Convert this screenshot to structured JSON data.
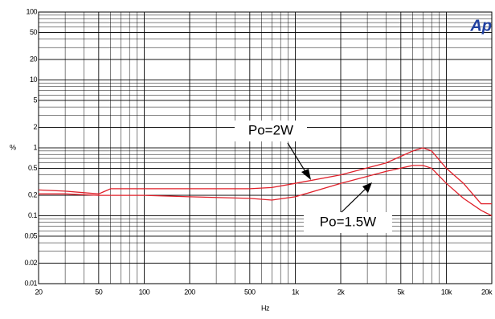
{
  "chart_data": {
    "type": "line",
    "xlabel": "Hz",
    "ylabel": "%",
    "logo": "Ap",
    "x": [
      20,
      30,
      50,
      60,
      100,
      200,
      500,
      700,
      1000,
      2000,
      4000,
      6000,
      7000,
      8000,
      10000,
      13000,
      17000,
      20000
    ],
    "series": [
      {
        "name": "Po=2W",
        "color": "#e0202a",
        "values": [
          0.24,
          0.23,
          0.21,
          0.25,
          0.25,
          0.25,
          0.25,
          0.26,
          0.3,
          0.4,
          0.6,
          0.9,
          1.0,
          0.9,
          0.5,
          0.3,
          0.15,
          0.15
        ]
      },
      {
        "name": "Po=1.5W",
        "color": "#e0202a",
        "values": [
          0.21,
          0.21,
          0.2,
          0.2,
          0.2,
          0.19,
          0.18,
          0.17,
          0.19,
          0.3,
          0.45,
          0.55,
          0.55,
          0.5,
          0.3,
          0.18,
          0.12,
          0.1
        ]
      }
    ],
    "xlim": [
      20,
      20000
    ],
    "ylim": [
      0.01,
      100
    ],
    "log_x": true,
    "log_y": true,
    "grid": true,
    "xticks": [
      20,
      50,
      100,
      200,
      500,
      {
        "value": 1000,
        "label": "1k"
      },
      {
        "value": 2000,
        "label": "2k"
      },
      {
        "value": 5000,
        "label": "5k"
      },
      {
        "value": 10000,
        "label": "10k"
      },
      {
        "value": 20000,
        "label": "20k"
      }
    ],
    "yticks": [
      100,
      50,
      20,
      10,
      5,
      2,
      1,
      0.5,
      0.2,
      0.1,
      0.05,
      0.02,
      0.01
    ]
  }
}
